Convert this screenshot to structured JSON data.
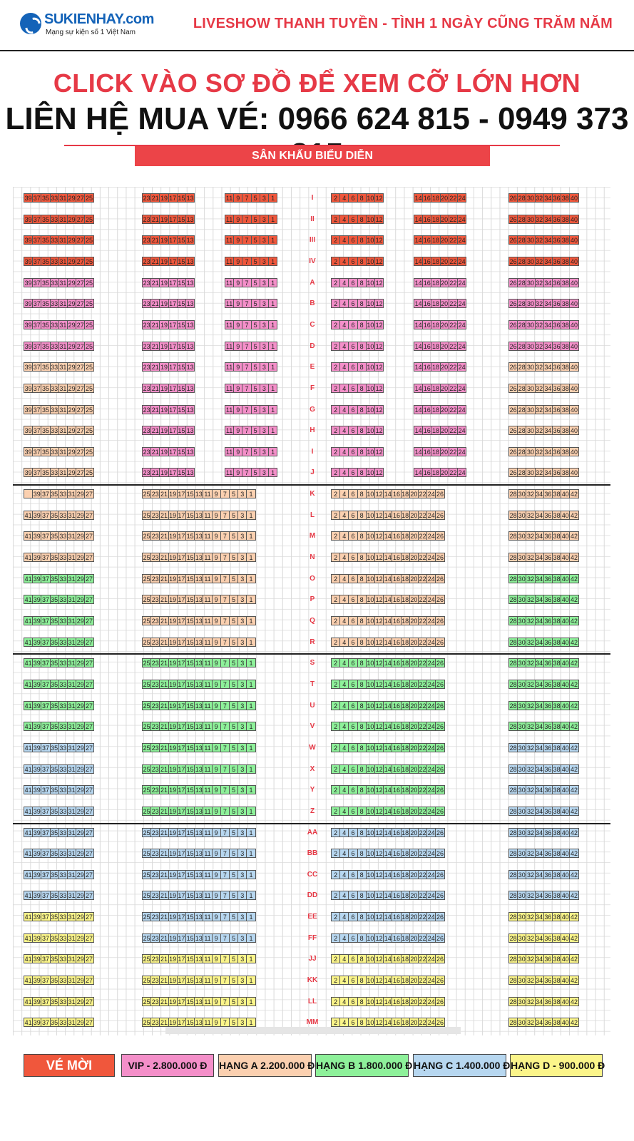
{
  "header": {
    "logo_name": "SUKIENHAY.com",
    "logo_tagline": "Mạng sự kiện số 1 Việt Nam",
    "show_title": "LIVESHOW THANH TUYỀN - TÌNH 1 NGÀY CŨNG TRĂM NĂM"
  },
  "banner": {
    "click_note": "CLICK VÀO SƠ ĐỒ ĐỂ XEM CỠ LỚN HƠN",
    "contact": "LIÊN HỆ MUA VÉ: 0966 624 815 - 0949 373 815",
    "stage": "SÂN KHẤU BIỂU DIỄN"
  },
  "colors": {
    "invite": "#f0573c",
    "vip": "#f48fc9",
    "a": "#fbd0b0",
    "b": "#8ef19a",
    "c": "#b7d7f0",
    "d": "#fbf58a"
  },
  "seating": {
    "upper_rows": [
      "I",
      "II",
      "III",
      "IV",
      "A",
      "B",
      "C",
      "D",
      "E",
      "F",
      "G",
      "H",
      "I",
      "J"
    ],
    "upper_classes": [
      "invite",
      "invite",
      "invite",
      "invite",
      "vip",
      "vip",
      "vip",
      "vip",
      "vip",
      "vip",
      "vip",
      "vip",
      "vip",
      "vip"
    ],
    "upper_left_classes": [
      "invite",
      "invite",
      "invite",
      "invite",
      "vip",
      "vip",
      "vip",
      "vip",
      "a",
      "a",
      "a",
      "a",
      "a",
      "a"
    ],
    "upper_right_classes": [
      "invite",
      "invite",
      "invite",
      "invite",
      "vip",
      "vip",
      "vip",
      "vip",
      "a",
      "a",
      "a",
      "a",
      "a",
      "a"
    ],
    "upper_seats": {
      "far_left": [
        "39",
        "37",
        "35",
        "33",
        "31",
        "29",
        "27",
        "25"
      ],
      "mid_left": [
        "23",
        "21",
        "19",
        "17",
        "15",
        "13"
      ],
      "center_left": [
        "11",
        "9",
        "7",
        "5",
        "3",
        "1"
      ],
      "center_right": [
        "2",
        "4",
        "6",
        "8",
        "10",
        "12"
      ],
      "mid_right": [
        "14",
        "16",
        "18",
        "20",
        "22",
        "24"
      ],
      "far_right": [
        "26",
        "28",
        "30",
        "32",
        "34",
        "36",
        "38",
        "40"
      ]
    },
    "lower_rows": [
      "K",
      "L",
      "M",
      "N",
      "O",
      "P",
      "Q",
      "R",
      "S",
      "T",
      "U",
      "V",
      "W",
      "X",
      "Y",
      "Z",
      "AA",
      "BB",
      "CC",
      "DD",
      "EE",
      "FF",
      "JJ",
      "KK",
      "LL",
      "MM"
    ],
    "lower_left_classes": [
      "a",
      "a",
      "a",
      "a",
      "b",
      "b",
      "b",
      "b",
      "b",
      "b",
      "b",
      "b",
      "c",
      "c",
      "c",
      "c",
      "c",
      "c",
      "c",
      "c",
      "d",
      "d",
      "d",
      "d",
      "d",
      "d"
    ],
    "lower_center_classes": [
      "a",
      "a",
      "a",
      "a",
      "a",
      "a",
      "a",
      "a",
      "b",
      "b",
      "b",
      "b",
      "b",
      "b",
      "b",
      "b",
      "c",
      "c",
      "c",
      "c",
      "c",
      "c",
      "d",
      "d",
      "d",
      "d"
    ],
    "lower_right_classes": [
      "a",
      "a",
      "a",
      "a",
      "b",
      "b",
      "b",
      "b",
      "b",
      "b",
      "b",
      "b",
      "c",
      "c",
      "c",
      "c",
      "c",
      "c",
      "c",
      "c",
      "d",
      "d",
      "d",
      "d",
      "d",
      "d"
    ],
    "lower_seats": {
      "far_left": [
        "41",
        "39",
        "37",
        "35",
        "33",
        "31",
        "29",
        "27"
      ],
      "far_left_k": [
        "",
        "39",
        "37",
        "35",
        "33",
        "31",
        "29",
        "27"
      ],
      "center_left": [
        "25",
        "23",
        "21",
        "19",
        "17",
        "15",
        "13",
        "11",
        "9",
        "7",
        "5",
        "3",
        "1"
      ],
      "center_right": [
        "2",
        "4",
        "6",
        "8",
        "10",
        "12",
        "14",
        "16",
        "18",
        "20",
        "22",
        "24",
        "26"
      ],
      "far_right": [
        "28",
        "30",
        "32",
        "34",
        "36",
        "38",
        "40",
        "42"
      ]
    }
  },
  "legend": [
    {
      "key": "invite",
      "label": "VÉ MỜI"
    },
    {
      "key": "vip",
      "label": "VIP - 2.800.000 Đ"
    },
    {
      "key": "a",
      "label": "HẠNG A 2.200.000 Đ"
    },
    {
      "key": "b",
      "label": "HẠNG B 1.800.000 Đ"
    },
    {
      "key": "c",
      "label": "HẠNG C 1.400.000 Đ"
    },
    {
      "key": "d",
      "label": "HẠNG D - 900.000 Đ"
    }
  ]
}
